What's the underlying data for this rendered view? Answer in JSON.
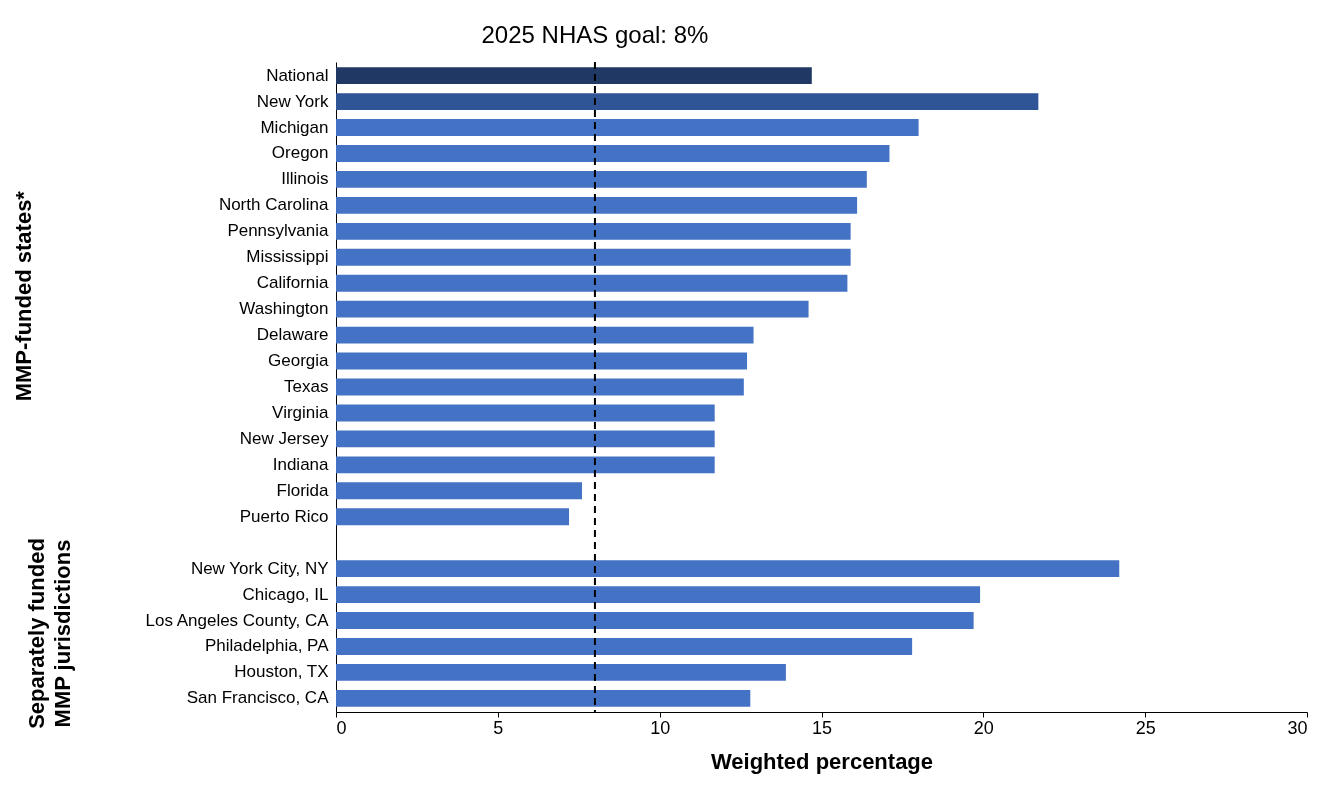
{
  "chart_data": {
    "type": "bar",
    "orientation": "horizontal",
    "categories": [
      "National",
      "New York",
      "Michigan",
      "Oregon",
      "Illinois",
      "North Carolina",
      "Pennsylvania",
      "Mississippi",
      "California",
      "Washington",
      "Delaware",
      "Georgia",
      "Texas",
      "Virginia",
      "New Jersey",
      "Indiana",
      "Florida",
      "Puerto Rico",
      null,
      "New York City, NY",
      "Chicago, IL",
      "Los Angeles County, CA",
      "Philadelphia, PA",
      "Houston, TX",
      "San Francisco, CA"
    ],
    "values": [
      14.7,
      21.7,
      18.0,
      17.1,
      16.4,
      16.1,
      15.9,
      15.9,
      15.8,
      14.6,
      12.9,
      12.7,
      12.6,
      11.7,
      11.7,
      11.7,
      7.6,
      7.2,
      null,
      24.2,
      19.9,
      19.7,
      17.8,
      13.9,
      12.8
    ],
    "colors": [
      "#203864",
      "#2f5597",
      "#4472c4",
      "#4472c4",
      "#4472c4",
      "#4472c4",
      "#4472c4",
      "#4472c4",
      "#4472c4",
      "#4472c4",
      "#4472c4",
      "#4472c4",
      "#4472c4",
      "#4472c4",
      "#4472c4",
      "#4472c4",
      "#4472c4",
      "#4472c4",
      null,
      "#4472c4",
      "#4472c4",
      "#4472c4",
      "#4472c4",
      "#4472c4",
      "#4472c4"
    ],
    "xlabel": "Weighted percentage",
    "xlim": [
      0,
      30
    ],
    "xticks": [
      0,
      5,
      10,
      15,
      20,
      25,
      30
    ],
    "grid": false,
    "ref_lines": [
      {
        "axis": "x",
        "value": 8,
        "label": "2025 NHAS goal: 8%",
        "line_style": "dashed",
        "color": "#000000"
      }
    ],
    "annotations": [
      "MMP-funded states*",
      "Separately funded MMP jurisdictions"
    ]
  }
}
